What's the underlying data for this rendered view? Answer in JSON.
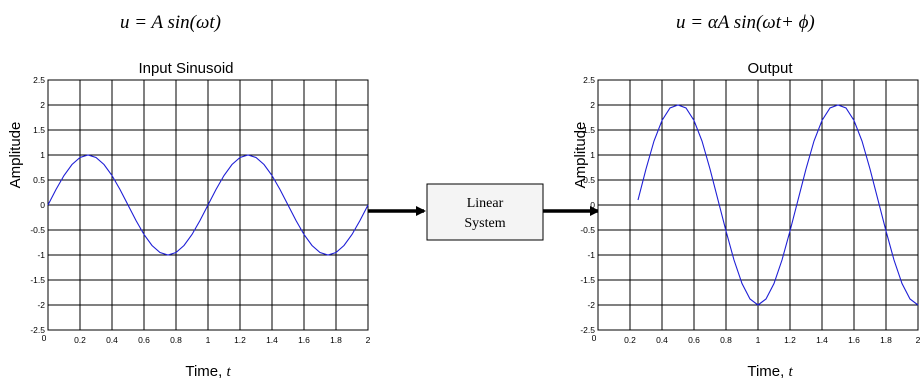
{
  "equations": {
    "input": "u = A sin(ωt)",
    "output": "u = αA sin(ωt+ ϕ)"
  },
  "system_box": {
    "line1": "Linear",
    "line2": "System"
  },
  "colors": {
    "curve": "#1f1fd6",
    "grid": "#000000",
    "box_fill": "#f4f4f4"
  },
  "chart_data": [
    {
      "type": "line",
      "title": "Input Sinusoid",
      "xlabel": "Time, t",
      "ylabel": "Amplitude",
      "xlim": [
        0,
        2
      ],
      "ylim": [
        -2.5,
        2.5
      ],
      "x_ticks": [
        "0",
        "0.2",
        "0.4",
        "0.6",
        "0.8",
        "1",
        "1.2",
        "1.4",
        "1.6",
        "1.8",
        "2"
      ],
      "y_ticks": [
        "2.5",
        "2",
        "1.5",
        "1",
        "0.5",
        "0",
        "-0.5",
        "-1",
        "-1.5",
        "-2",
        "-2.5"
      ],
      "grid": true,
      "series": [
        {
          "x": [
            0,
            0.05,
            0.1,
            0.15,
            0.2,
            0.25,
            0.3,
            0.35,
            0.4,
            0.45,
            0.5,
            0.55,
            0.6,
            0.65,
            0.7,
            0.75,
            0.8,
            0.85,
            0.9,
            0.95,
            1,
            1.05,
            1.1,
            1.15,
            1.2,
            1.25,
            1.3,
            1.35,
            1.4,
            1.45,
            1.5,
            1.55,
            1.6,
            1.65,
            1.7,
            1.75,
            1.8,
            1.85,
            1.9,
            1.95,
            2
          ],
          "y": [
            0,
            0.31,
            0.59,
            0.81,
            0.95,
            1,
            0.95,
            0.81,
            0.59,
            0.31,
            0,
            -0.31,
            -0.59,
            -0.81,
            -0.95,
            -1,
            -0.95,
            -0.81,
            -0.59,
            -0.31,
            0,
            0.31,
            0.59,
            0.81,
            0.95,
            1,
            0.95,
            0.81,
            0.59,
            0.31,
            0,
            -0.31,
            -0.59,
            -0.81,
            -0.95,
            -1,
            -0.95,
            -0.81,
            -0.59,
            -0.31,
            0
          ]
        }
      ]
    },
    {
      "type": "line",
      "title": "Output",
      "xlabel": "Time, t",
      "ylabel": "Amplitude",
      "xlim": [
        0,
        2
      ],
      "ylim": [
        -2.5,
        2.5
      ],
      "x_ticks": [
        "0",
        "0.2",
        "0.4",
        "0.6",
        "0.8",
        "1",
        "1.2",
        "1.4",
        "1.6",
        "1.8",
        "2"
      ],
      "y_ticks": [
        "2.5",
        "2",
        "1.5",
        "1",
        "0.5",
        "0",
        "-0.5",
        "-1",
        "-1.5",
        "-2",
        "-2.5"
      ],
      "grid": true,
      "series": [
        {
          "x": [
            0.25,
            0.3,
            0.35,
            0.4,
            0.45,
            0.5,
            0.55,
            0.6,
            0.65,
            0.7,
            0.75,
            0.8,
            0.85,
            0.9,
            0.95,
            1,
            1.05,
            1.1,
            1.15,
            1.2,
            1.25,
            1.3,
            1.35,
            1.4,
            1.45,
            1.5,
            1.55,
            1.6,
            1.65,
            1.7,
            1.75,
            1.8,
            1.85,
            1.9,
            1.95,
            2
          ],
          "y": [
            0.1,
            0.72,
            1.28,
            1.69,
            1.94,
            2,
            1.94,
            1.69,
            1.28,
            0.72,
            0.1,
            -0.52,
            -1.1,
            -1.57,
            -1.88,
            -2,
            -1.88,
            -1.57,
            -1.1,
            -0.52,
            0.1,
            0.72,
            1.28,
            1.69,
            1.94,
            2,
            1.94,
            1.69,
            1.28,
            0.72,
            0.1,
            -0.52,
            -1.1,
            -1.57,
            -1.88,
            -2
          ]
        }
      ]
    }
  ]
}
